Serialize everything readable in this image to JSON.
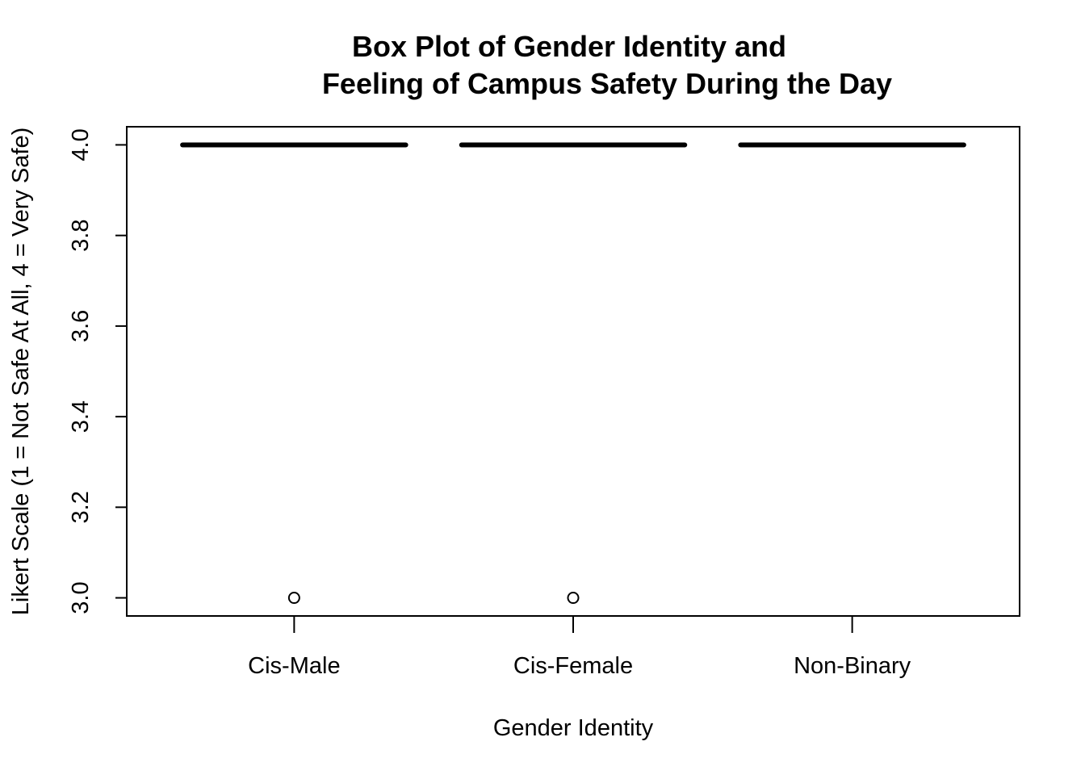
{
  "chart_data": {
    "type": "box",
    "title_lines": [
      "Box Plot of Gender Identity and",
      "Feeling of Campus Safety During the Day"
    ],
    "xlabel": "Gender Identity",
    "ylabel": "Likert Scale (1 = Not Safe At All, 4 = Very Safe)",
    "categories": [
      "Cis-Male",
      "Cis-Female",
      "Non-Binary"
    ],
    "ylim": [
      2.96,
      4.04
    ],
    "yticks": [
      3.0,
      3.2,
      3.4,
      3.6,
      3.8,
      4.0
    ],
    "ytick_labels": [
      "3.0",
      "3.2",
      "3.4",
      "3.6",
      "3.8",
      "4.0"
    ],
    "boxes": [
      {
        "category": "Cis-Male",
        "min": 4.0,
        "q1": 4.0,
        "median": 4.0,
        "q3": 4.0,
        "max": 4.0,
        "outliers": [
          3.0
        ]
      },
      {
        "category": "Cis-Female",
        "min": 4.0,
        "q1": 4.0,
        "median": 4.0,
        "q3": 4.0,
        "max": 4.0,
        "outliers": [
          3.0
        ]
      },
      {
        "category": "Non-Binary",
        "min": 4.0,
        "q1": 4.0,
        "median": 4.0,
        "q3": 4.0,
        "max": 4.0,
        "outliers": []
      }
    ],
    "grid": false,
    "color": "#000000"
  }
}
